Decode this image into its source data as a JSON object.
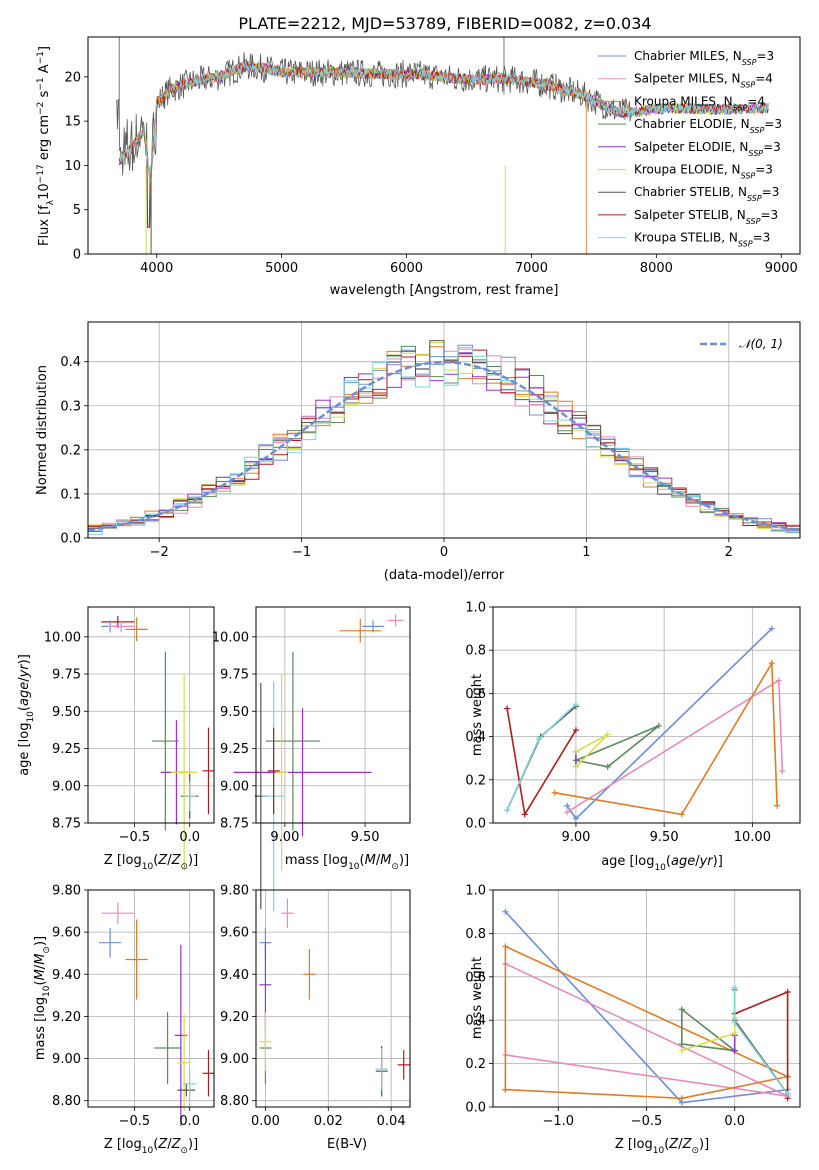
{
  "figure": {
    "title": "PLATE=2212, MJD=53789, FIBERID=0082, z=0.034"
  },
  "legend_spectra": [
    {
      "label": "Chabrier MILES, N",
      "sub": "SSP",
      "suffix": "=3",
      "color": "#6a8fd6"
    },
    {
      "label": "Salpeter MILES, N",
      "sub": "SSP",
      "suffix": "=4",
      "color": "#e58cbe"
    },
    {
      "label": "Kroupa MILES, N",
      "sub": "SSP",
      "suffix": "=4",
      "color": "#e07b25"
    },
    {
      "label": "Chabrier ELODIE, N",
      "sub": "SSP",
      "suffix": "=3",
      "color": "#5c8a5c"
    },
    {
      "label": "Salpeter ELODIE, N",
      "sub": "SSP",
      "suffix": "=3",
      "color": "#9b30c8"
    },
    {
      "label": "Kroupa ELODIE, N",
      "sub": "SSP",
      "suffix": "=3",
      "color": "#d8dc50"
    },
    {
      "label": "Chabrier STELIB, N",
      "sub": "SSP",
      "suffix": "=3",
      "color": "#555555"
    },
    {
      "label": "Salpeter STELIB, N",
      "sub": "SSP",
      "suffix": "=3",
      "color": "#b01c1c"
    },
    {
      "label": "Kroupa STELIB, N",
      "sub": "SSP",
      "suffix": "=3",
      "color": "#7fd4d8"
    }
  ],
  "legend_hist": {
    "label": "𝒩(0, 1)",
    "color": "#6a8fd6"
  },
  "chart_data": [
    {
      "id": "spectrum",
      "type": "line",
      "xlabel": "wavelength [Angstrom, rest frame]",
      "ylabel": "Flux [f",
      "ylabel_parts": [
        "Flux [f",
        "λ",
        "10",
        "−17",
        " erg cm",
        "−2",
        " s",
        "−1",
        " A",
        "−1",
        "]"
      ],
      "xlim": [
        3450,
        9150
      ],
      "ylim": [
        0,
        24.5
      ],
      "xticks": [
        4000,
        5000,
        6000,
        7000,
        8000,
        9000
      ],
      "yticks": [
        0,
        5,
        10,
        15,
        20
      ],
      "grid": false,
      "legend_position": "top-right",
      "series_envelope": {
        "x": [
          3700,
          3800,
          3900,
          3950,
          4000,
          4100,
          4300,
          4500,
          4700,
          4860,
          5000,
          5200,
          5500,
          5800,
          6100,
          6400,
          6560,
          6800,
          7100,
          7400,
          7700,
          7800,
          8100,
          8500,
          8900
        ],
        "y": [
          10.5,
          12,
          14,
          8,
          17,
          18.5,
          19.5,
          20,
          21.2,
          21,
          20.5,
          20.5,
          20.5,
          20.3,
          20.3,
          19.8,
          19.7,
          19.8,
          19.2,
          18,
          16,
          16,
          16.5,
          16.3,
          16.5
        ]
      }
    },
    {
      "id": "residuals",
      "type": "area",
      "xlabel": "(data-model)/error",
      "ylabel": "Normed distribution",
      "xlim": [
        -2.5,
        2.5
      ],
      "ylim": [
        0,
        0.49
      ],
      "xticks": [
        -2,
        -1,
        0,
        1,
        2
      ],
      "yticks": [
        0.0,
        0.1,
        0.2,
        0.3,
        0.4
      ],
      "grid": true,
      "legend_position": "top-right",
      "gaussian": {
        "mean": 0,
        "sigma": 1
      }
    },
    {
      "id": "age-vs-Z",
      "type": "scatter",
      "xlabel": "Z [log",
      "ylabel": "age  [log",
      "xlim": [
        -0.92,
        0.22
      ],
      "ylim": [
        8.75,
        10.2
      ],
      "xticks": [
        -0.5,
        0.0
      ],
      "yticks": [
        8.75,
        9.0,
        9.25,
        9.5,
        9.75,
        10.0
      ],
      "grid": true,
      "points": [
        {
          "x": -0.65,
          "y": 10.1,
          "ex": 0.15,
          "ey": 0.03,
          "c": 7
        },
        {
          "x": -0.72,
          "y": 10.07,
          "ex": 0.08,
          "ey": 0.03,
          "c": 0
        },
        {
          "x": -0.62,
          "y": 10.07,
          "ex": 0.12,
          "ey": 0.04,
          "c": 1
        },
        {
          "x": -0.48,
          "y": 10.05,
          "ex": 0.1,
          "ey": 0.08,
          "c": 2
        },
        {
          "x": -0.22,
          "y": 9.3,
          "ex": 0.12,
          "ey": 0.6,
          "c": 3
        },
        {
          "x": -0.12,
          "y": 9.09,
          "ex": 0.14,
          "ey": 0.35,
          "c": 4
        },
        {
          "x": -0.05,
          "y": 9.09,
          "ex": 0.12,
          "ey": 0.66,
          "c": 5
        },
        {
          "x": 0.0,
          "y": 8.93,
          "ex": 0.08,
          "ey": 0.15,
          "c": 6
        },
        {
          "x": 0.0,
          "y": 8.93,
          "ex": 0.06,
          "ey": 0.1,
          "c": 8
        },
        {
          "x": 0.17,
          "y": 9.1,
          "ex": 0.02,
          "ey": 0.29,
          "c": 7
        }
      ]
    },
    {
      "id": "age-vs-mass",
      "type": "scatter",
      "xlabel": "mass [log",
      "ylabel": "",
      "xlim": [
        8.82,
        9.78
      ],
      "ylim": [
        8.75,
        10.2
      ],
      "xticks": [
        9.0,
        9.5
      ],
      "yticks": [
        8.75,
        9.0,
        9.25,
        9.5,
        9.75,
        10.0
      ],
      "grid": true,
      "points": [
        {
          "x": 9.69,
          "y": 10.11,
          "ex": 0.05,
          "ey": 0.04,
          "c": 1
        },
        {
          "x": 9.55,
          "y": 10.07,
          "ex": 0.07,
          "ey": 0.04,
          "c": 0
        },
        {
          "x": 9.47,
          "y": 10.04,
          "ex": 0.13,
          "ey": 0.08,
          "c": 2
        },
        {
          "x": 9.05,
          "y": 9.3,
          "ex": 0.17,
          "ey": 0.6,
          "c": 3
        },
        {
          "x": 9.11,
          "y": 9.09,
          "ex": 0.43,
          "ey": 0.43,
          "c": 4
        },
        {
          "x": 8.98,
          "y": 9.09,
          "ex": 0.04,
          "ey": 0.66,
          "c": 5
        },
        {
          "x": 8.85,
          "y": 8.93,
          "ex": 0.03,
          "ey": 0.76,
          "c": 6
        },
        {
          "x": 8.93,
          "y": 8.93,
          "ex": 0.07,
          "ey": 0.77,
          "c": 8
        },
        {
          "x": 8.93,
          "y": 9.1,
          "ex": 0.02,
          "ey": 0.29,
          "c": 7
        }
      ]
    },
    {
      "id": "weight-vs-age",
      "type": "line",
      "xlabel": "age  [log",
      "ylabel": "mass weight",
      "xlim": [
        8.53,
        10.27
      ],
      "ylim": [
        0.0,
        1.0
      ],
      "xticks": [
        9.0,
        9.5,
        10.0
      ],
      "yticks": [
        0.0,
        0.2,
        0.4,
        0.6,
        0.8,
        1.0
      ],
      "grid": true,
      "series": [
        {
          "c": 0,
          "x": [
            8.95,
            9.0,
            10.11
          ],
          "y": [
            0.08,
            0.02,
            0.9
          ]
        },
        {
          "c": 1,
          "x": [
            8.95,
            10.15,
            10.17
          ],
          "y": [
            0.05,
            0.66,
            0.24
          ]
        },
        {
          "c": 2,
          "x": [
            8.88,
            9.6,
            10.11,
            10.14
          ],
          "y": [
            0.14,
            0.04,
            0.74,
            0.08
          ]
        },
        {
          "c": 3,
          "x": [
            9.0,
            9.18,
            9.47,
            9.0
          ],
          "y": [
            0.29,
            0.26,
            0.45,
            0.29
          ]
        },
        {
          "c": 4,
          "x": [
            9.0,
            9.0
          ],
          "y": [
            0.26,
            0.33
          ]
        },
        {
          "c": 5,
          "x": [
            9.0,
            9.18,
            9.0
          ],
          "y": [
            0.26,
            0.41,
            0.33
          ]
        },
        {
          "c": 6,
          "x": [
            8.61,
            8.8,
            9.0
          ],
          "y": [
            0.06,
            0.4,
            0.54
          ]
        },
        {
          "c": 7,
          "x": [
            8.61,
            8.71,
            9.0
          ],
          "y": [
            0.53,
            0.04,
            0.43
          ]
        },
        {
          "c": 8,
          "x": [
            8.61,
            8.79,
            9.0
          ],
          "y": [
            0.06,
            0.39,
            0.55
          ]
        }
      ]
    },
    {
      "id": "mass-vs-Z",
      "type": "scatter",
      "xlabel": "Z [log",
      "ylabel": "mass [log",
      "xlim": [
        -0.92,
        0.22
      ],
      "ylim": [
        8.77,
        9.8
      ],
      "xticks": [
        -0.5,
        0.0
      ],
      "yticks": [
        8.8,
        9.0,
        9.2,
        9.4,
        9.6,
        9.8
      ],
      "grid": true,
      "points": [
        {
          "x": -0.65,
          "y": 9.69,
          "ex": 0.15,
          "ey": 0.05,
          "c": 1
        },
        {
          "x": -0.72,
          "y": 9.55,
          "ex": 0.1,
          "ey": 0.07,
          "c": 0
        },
        {
          "x": -0.48,
          "y": 9.47,
          "ex": 0.1,
          "ey": 0.19,
          "c": 2
        },
        {
          "x": -0.2,
          "y": 9.05,
          "ex": 0.12,
          "ey": 0.17,
          "c": 3
        },
        {
          "x": -0.08,
          "y": 9.11,
          "ex": 0.05,
          "ey": 0.43,
          "c": 4
        },
        {
          "x": -0.05,
          "y": 8.98,
          "ex": 0.06,
          "ey": 0.23,
          "c": 5
        },
        {
          "x": -0.03,
          "y": 8.85,
          "ex": 0.08,
          "ey": 0.03,
          "c": 6
        },
        {
          "x": 0.0,
          "y": 8.88,
          "ex": 0.06,
          "ey": 0.07,
          "c": 8
        },
        {
          "x": 0.17,
          "y": 8.93,
          "ex": 0.02,
          "ey": 0.11,
          "c": 7
        }
      ]
    },
    {
      "id": "mass-vs-EBV",
      "type": "scatter",
      "xlabel": "E(B-V)",
      "ylabel": "",
      "xlim": [
        -0.003,
        0.046
      ],
      "ylim": [
        8.77,
        9.8
      ],
      "xticks": [
        0.0,
        0.02,
        0.04
      ],
      "yticks": [
        8.8,
        9.0,
        9.2,
        9.4,
        9.6,
        9.8
      ],
      "grid": true,
      "points": [
        {
          "x": 0.007,
          "y": 9.69,
          "ex": 0.0,
          "ey": 0.07,
          "c": 1
        },
        {
          "x": 0.0,
          "y": 9.55,
          "ex": 0.0,
          "ey": 0.07,
          "c": 0
        },
        {
          "x": 0.014,
          "y": 9.4,
          "ex": 0.0,
          "ey": 0.12,
          "c": 2
        },
        {
          "x": 0.0,
          "y": 9.05,
          "ex": 0.0,
          "ey": 0.17,
          "c": 3
        },
        {
          "x": 0.0,
          "y": 9.35,
          "ex": 0.0,
          "ey": 0.2,
          "c": 4
        },
        {
          "x": 0.0,
          "y": 9.08,
          "ex": 0.0,
          "ey": 0.14,
          "c": 5
        },
        {
          "x": 0.037,
          "y": 8.94,
          "ex": 0.0,
          "ey": 0.12,
          "c": 6
        },
        {
          "x": 0.037,
          "y": 8.95,
          "ex": 0.0,
          "ey": 0.1,
          "c": 8
        },
        {
          "x": 0.044,
          "y": 8.97,
          "ex": 0.0,
          "ey": 0.07,
          "c": 7
        }
      ]
    },
    {
      "id": "weight-vs-Z",
      "type": "line",
      "xlabel": "Z [log",
      "ylabel": "mass weight",
      "xlim": [
        -1.37,
        0.37
      ],
      "ylim": [
        0.0,
        1.0
      ],
      "xticks": [
        -1.0,
        -0.5,
        0.0
      ],
      "yticks": [
        0.0,
        0.2,
        0.4,
        0.6,
        0.8,
        1.0
      ],
      "grid": true,
      "series": [
        {
          "c": 0,
          "x": [
            -1.3,
            -0.3,
            0.3
          ],
          "y": [
            0.9,
            0.02,
            0.08
          ]
        },
        {
          "c": 1,
          "x": [
            -1.3,
            0.3,
            -1.3
          ],
          "y": [
            0.24,
            0.05,
            0.66
          ]
        },
        {
          "c": 2,
          "x": [
            -1.3,
            -0.3,
            0.3,
            -1.3,
            -1.3
          ],
          "y": [
            0.08,
            0.04,
            0.14,
            0.74,
            0.08
          ]
        },
        {
          "c": 3,
          "x": [
            -0.3,
            0.0,
            -0.3,
            -0.3
          ],
          "y": [
            0.29,
            0.26,
            0.45,
            0.29
          ]
        },
        {
          "c": 4,
          "x": [
            0.0,
            0.0
          ],
          "y": [
            0.26,
            0.33
          ]
        },
        {
          "c": 5,
          "x": [
            -0.3,
            0.0,
            0.0
          ],
          "y": [
            0.26,
            0.34,
            0.41
          ]
        },
        {
          "c": 6,
          "x": [
            0.3,
            0.0,
            0.0
          ],
          "y": [
            0.06,
            0.4,
            0.54
          ]
        },
        {
          "c": 7,
          "x": [
            0.3,
            0.3,
            0.0
          ],
          "y": [
            0.04,
            0.53,
            0.43
          ]
        },
        {
          "c": 8,
          "x": [
            0.3,
            0.0,
            0.0
          ],
          "y": [
            0.06,
            0.39,
            0.55
          ]
        }
      ]
    }
  ]
}
